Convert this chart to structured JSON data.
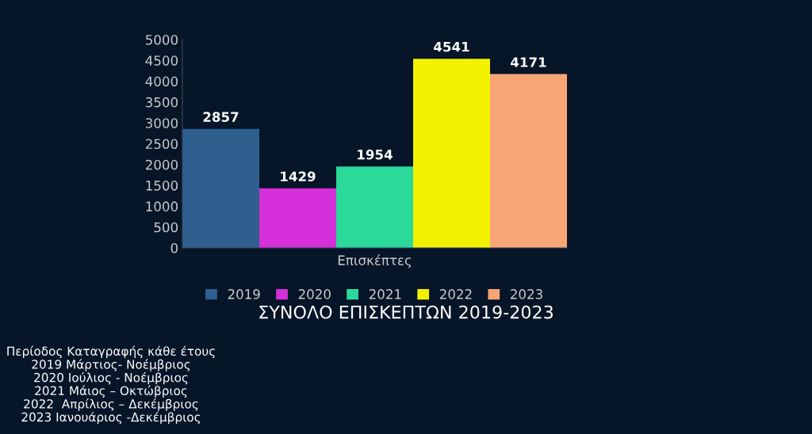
{
  "chart_data": {
    "type": "bar",
    "title": "ΣΥΝΟΛΟ ΕΠΙΣΚΕΠΤΩΝ 2019-2023",
    "categories": [
      "Επισκέπτες"
    ],
    "series": [
      {
        "name": "2019",
        "color": "#2e5f8f",
        "values": [
          2857
        ]
      },
      {
        "name": "2020",
        "color": "#d42fd8",
        "values": [
          1429
        ]
      },
      {
        "name": "2021",
        "color": "#2bd99a",
        "values": [
          1954
        ]
      },
      {
        "name": "2022",
        "color": "#f2f200",
        "values": [
          4541
        ]
      },
      {
        "name": "2023",
        "color": "#f7a575",
        "values": [
          4171
        ]
      }
    ],
    "ylim": [
      0,
      5000
    ],
    "yticks": [
      0,
      500,
      1000,
      1500,
      2000,
      2500,
      3000,
      3500,
      4000,
      4500,
      5000
    ],
    "grid": false,
    "legend": "bottom",
    "data_labels": true,
    "annotations": [
      "Περίοδος Καταγραφής κάθε έτους\n2019 Μάρτιος- Νοέμβριος\n2020 Ιούλιος - Νοέμβριος\n2021 Μάιος – Οκτώβριος\n2022  Απρίλιος – Δεκέμβριος\n2023 Ιανουάριος -Δεκέμβριος"
    ]
  }
}
